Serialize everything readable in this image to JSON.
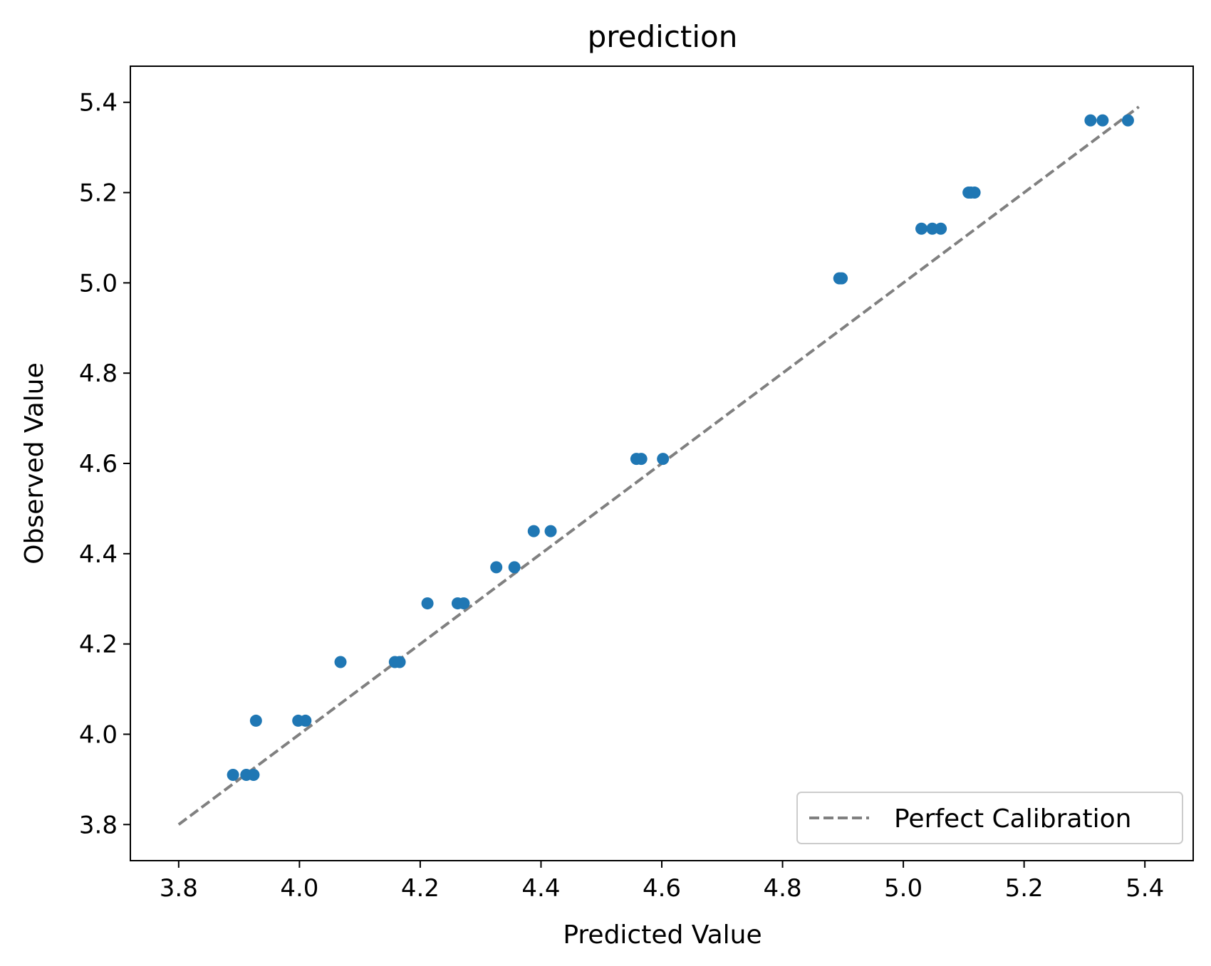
{
  "chart_data": {
    "type": "scatter",
    "title": "prediction",
    "xlabel": "Predicted Value",
    "ylabel": "Observed Value",
    "xlim": [
      3.72,
      5.48
    ],
    "ylim": [
      3.72,
      5.48
    ],
    "xticks": [
      3.8,
      4.0,
      4.2,
      4.4,
      4.6,
      4.8,
      5.0,
      5.2,
      5.4
    ],
    "yticks": [
      3.8,
      4.0,
      4.2,
      4.4,
      4.6,
      4.8,
      5.0,
      5.2,
      5.4
    ],
    "tick_labels_x": [
      "3.8",
      "4.0",
      "4.2",
      "4.4",
      "4.6",
      "4.8",
      "5.0",
      "5.2",
      "5.4"
    ],
    "tick_labels_y": [
      "3.8",
      "4.0",
      "4.2",
      "4.4",
      "4.6",
      "4.8",
      "5.0",
      "5.2",
      "5.4"
    ],
    "grid": false,
    "legend_position": "bottom-right",
    "series": [
      {
        "color": "#1f77b4",
        "x": [
          3.89,
          3.912,
          3.924,
          3.928,
          3.998,
          4.01,
          4.068,
          4.158,
          4.166,
          4.212,
          4.262,
          4.272,
          4.326,
          4.356,
          4.388,
          4.416,
          4.558,
          4.566,
          4.602,
          4.894,
          4.898,
          5.03,
          5.048,
          5.062,
          5.108,
          5.112,
          5.118,
          5.31,
          5.33,
          5.372
        ],
        "y": [
          3.91,
          3.91,
          3.91,
          4.03,
          4.03,
          4.03,
          4.16,
          4.16,
          4.16,
          4.29,
          4.29,
          4.29,
          4.37,
          4.37,
          4.45,
          4.45,
          4.61,
          4.61,
          4.61,
          5.01,
          5.01,
          5.12,
          5.12,
          5.12,
          5.2,
          5.2,
          5.2,
          5.36,
          5.36,
          5.36
        ]
      },
      {
        "name": "Perfect Calibration",
        "color": "#808080",
        "style": "dashed",
        "x": [
          3.8,
          5.39
        ],
        "y": [
          3.8,
          5.39
        ]
      }
    ]
  }
}
